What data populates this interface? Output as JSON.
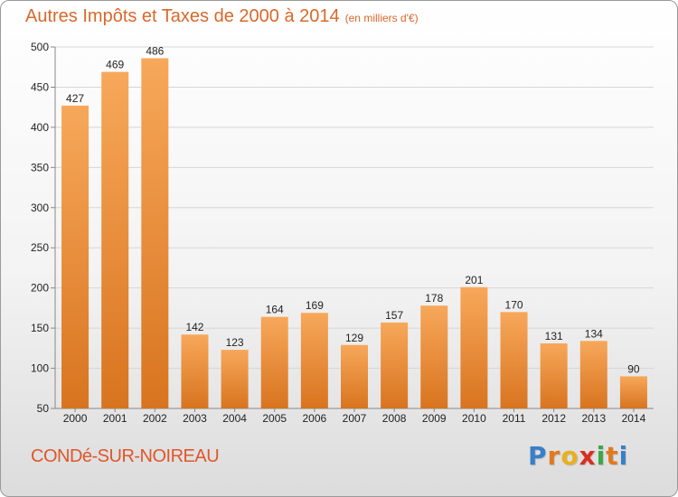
{
  "header": {
    "title": "Autres Impôts et Taxes de 2000 à 2014",
    "unit": "(en milliers d'€)"
  },
  "footer": {
    "commune": "CONDé-SUR-NOIREAU",
    "logo": [
      "P",
      "r",
      "o",
      "x",
      "i",
      "t",
      "i"
    ],
    "logo_colors": [
      "#3a7fc8",
      "#e07a20",
      "#e8b020",
      "#d83020",
      "#3aa848",
      "#e07a20",
      "#3a7fc8"
    ]
  },
  "colors": {
    "bar_light": "#f7a85a",
    "bar_dark": "#d8741f",
    "grid": "#d6d6d6",
    "axis": "#888888"
  },
  "chart_data": {
    "type": "bar",
    "title": "Autres Impôts et Taxes de 2000 à 2014",
    "subtitle": "(en milliers d'€)",
    "categories": [
      "2000",
      "2001",
      "2002",
      "2003",
      "2004",
      "2005",
      "2006",
      "2007",
      "2008",
      "2009",
      "2010",
      "2011",
      "2012",
      "2013",
      "2014"
    ],
    "values": [
      427,
      469,
      486,
      142,
      123,
      164,
      169,
      129,
      157,
      178,
      201,
      170,
      131,
      134,
      90
    ],
    "ylim": [
      50,
      500
    ],
    "yticks": [
      50,
      100,
      150,
      200,
      250,
      300,
      350,
      400,
      450,
      500
    ],
    "grid": true,
    "xlabel": "",
    "ylabel": ""
  }
}
